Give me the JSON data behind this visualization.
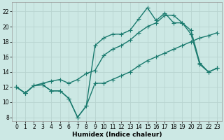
{
  "xlabel": "Humidex (Indice chaleur)",
  "xlim": [
    -0.5,
    23.5
  ],
  "ylim": [
    7.5,
    23.2
  ],
  "xticks": [
    0,
    1,
    2,
    3,
    4,
    5,
    6,
    7,
    8,
    9,
    10,
    11,
    12,
    13,
    14,
    15,
    16,
    17,
    18,
    19,
    20,
    21,
    22,
    23
  ],
  "yticks": [
    8,
    10,
    12,
    14,
    16,
    18,
    20,
    22
  ],
  "bg_color": "#cce8e4",
  "grid_color": "#b8d4d0",
  "line_color": "#1a7a6e",
  "line1_x": [
    0,
    1,
    2,
    3,
    4,
    5,
    6,
    7,
    8,
    9,
    10,
    11,
    12,
    13,
    14,
    15,
    16,
    17,
    18,
    19,
    20,
    21,
    22,
    23
  ],
  "line1_y": [
    12.0,
    11.2,
    12.2,
    12.3,
    11.5,
    11.5,
    10.5,
    8.0,
    9.5,
    12.5,
    12.5,
    13.0,
    13.5,
    14.0,
    14.8,
    15.5,
    16.0,
    16.5,
    17.0,
    17.5,
    18.0,
    18.5,
    18.8,
    19.2
  ],
  "line2_x": [
    0,
    1,
    2,
    3,
    4,
    5,
    6,
    7,
    8,
    9,
    10,
    11,
    12,
    13,
    14,
    15,
    16,
    17,
    18,
    19,
    20,
    21,
    22,
    23
  ],
  "line2_y": [
    12.0,
    11.2,
    12.2,
    12.3,
    11.5,
    11.5,
    10.5,
    8.0,
    9.5,
    17.5,
    18.5,
    19.0,
    19.0,
    19.5,
    21.0,
    22.5,
    20.8,
    21.8,
    20.5,
    20.5,
    19.0,
    15.0,
    14.0,
    14.5
  ],
  "line3_x": [
    0,
    1,
    2,
    3,
    4,
    5,
    6,
    7,
    8,
    9,
    10,
    11,
    12,
    13,
    14,
    15,
    16,
    17,
    18,
    19,
    20,
    21,
    22,
    23
  ],
  "line3_y": [
    12.0,
    11.2,
    12.2,
    12.5,
    12.8,
    13.0,
    12.5,
    13.0,
    13.8,
    14.2,
    16.2,
    17.0,
    17.5,
    18.2,
    19.2,
    20.0,
    20.5,
    21.5,
    21.5,
    20.5,
    19.5,
    15.2,
    14.0,
    14.5
  ],
  "marker_size": 2.5,
  "line_width": 1.0,
  "axis_fontsize": 6.5,
  "tick_fontsize": 5.5
}
